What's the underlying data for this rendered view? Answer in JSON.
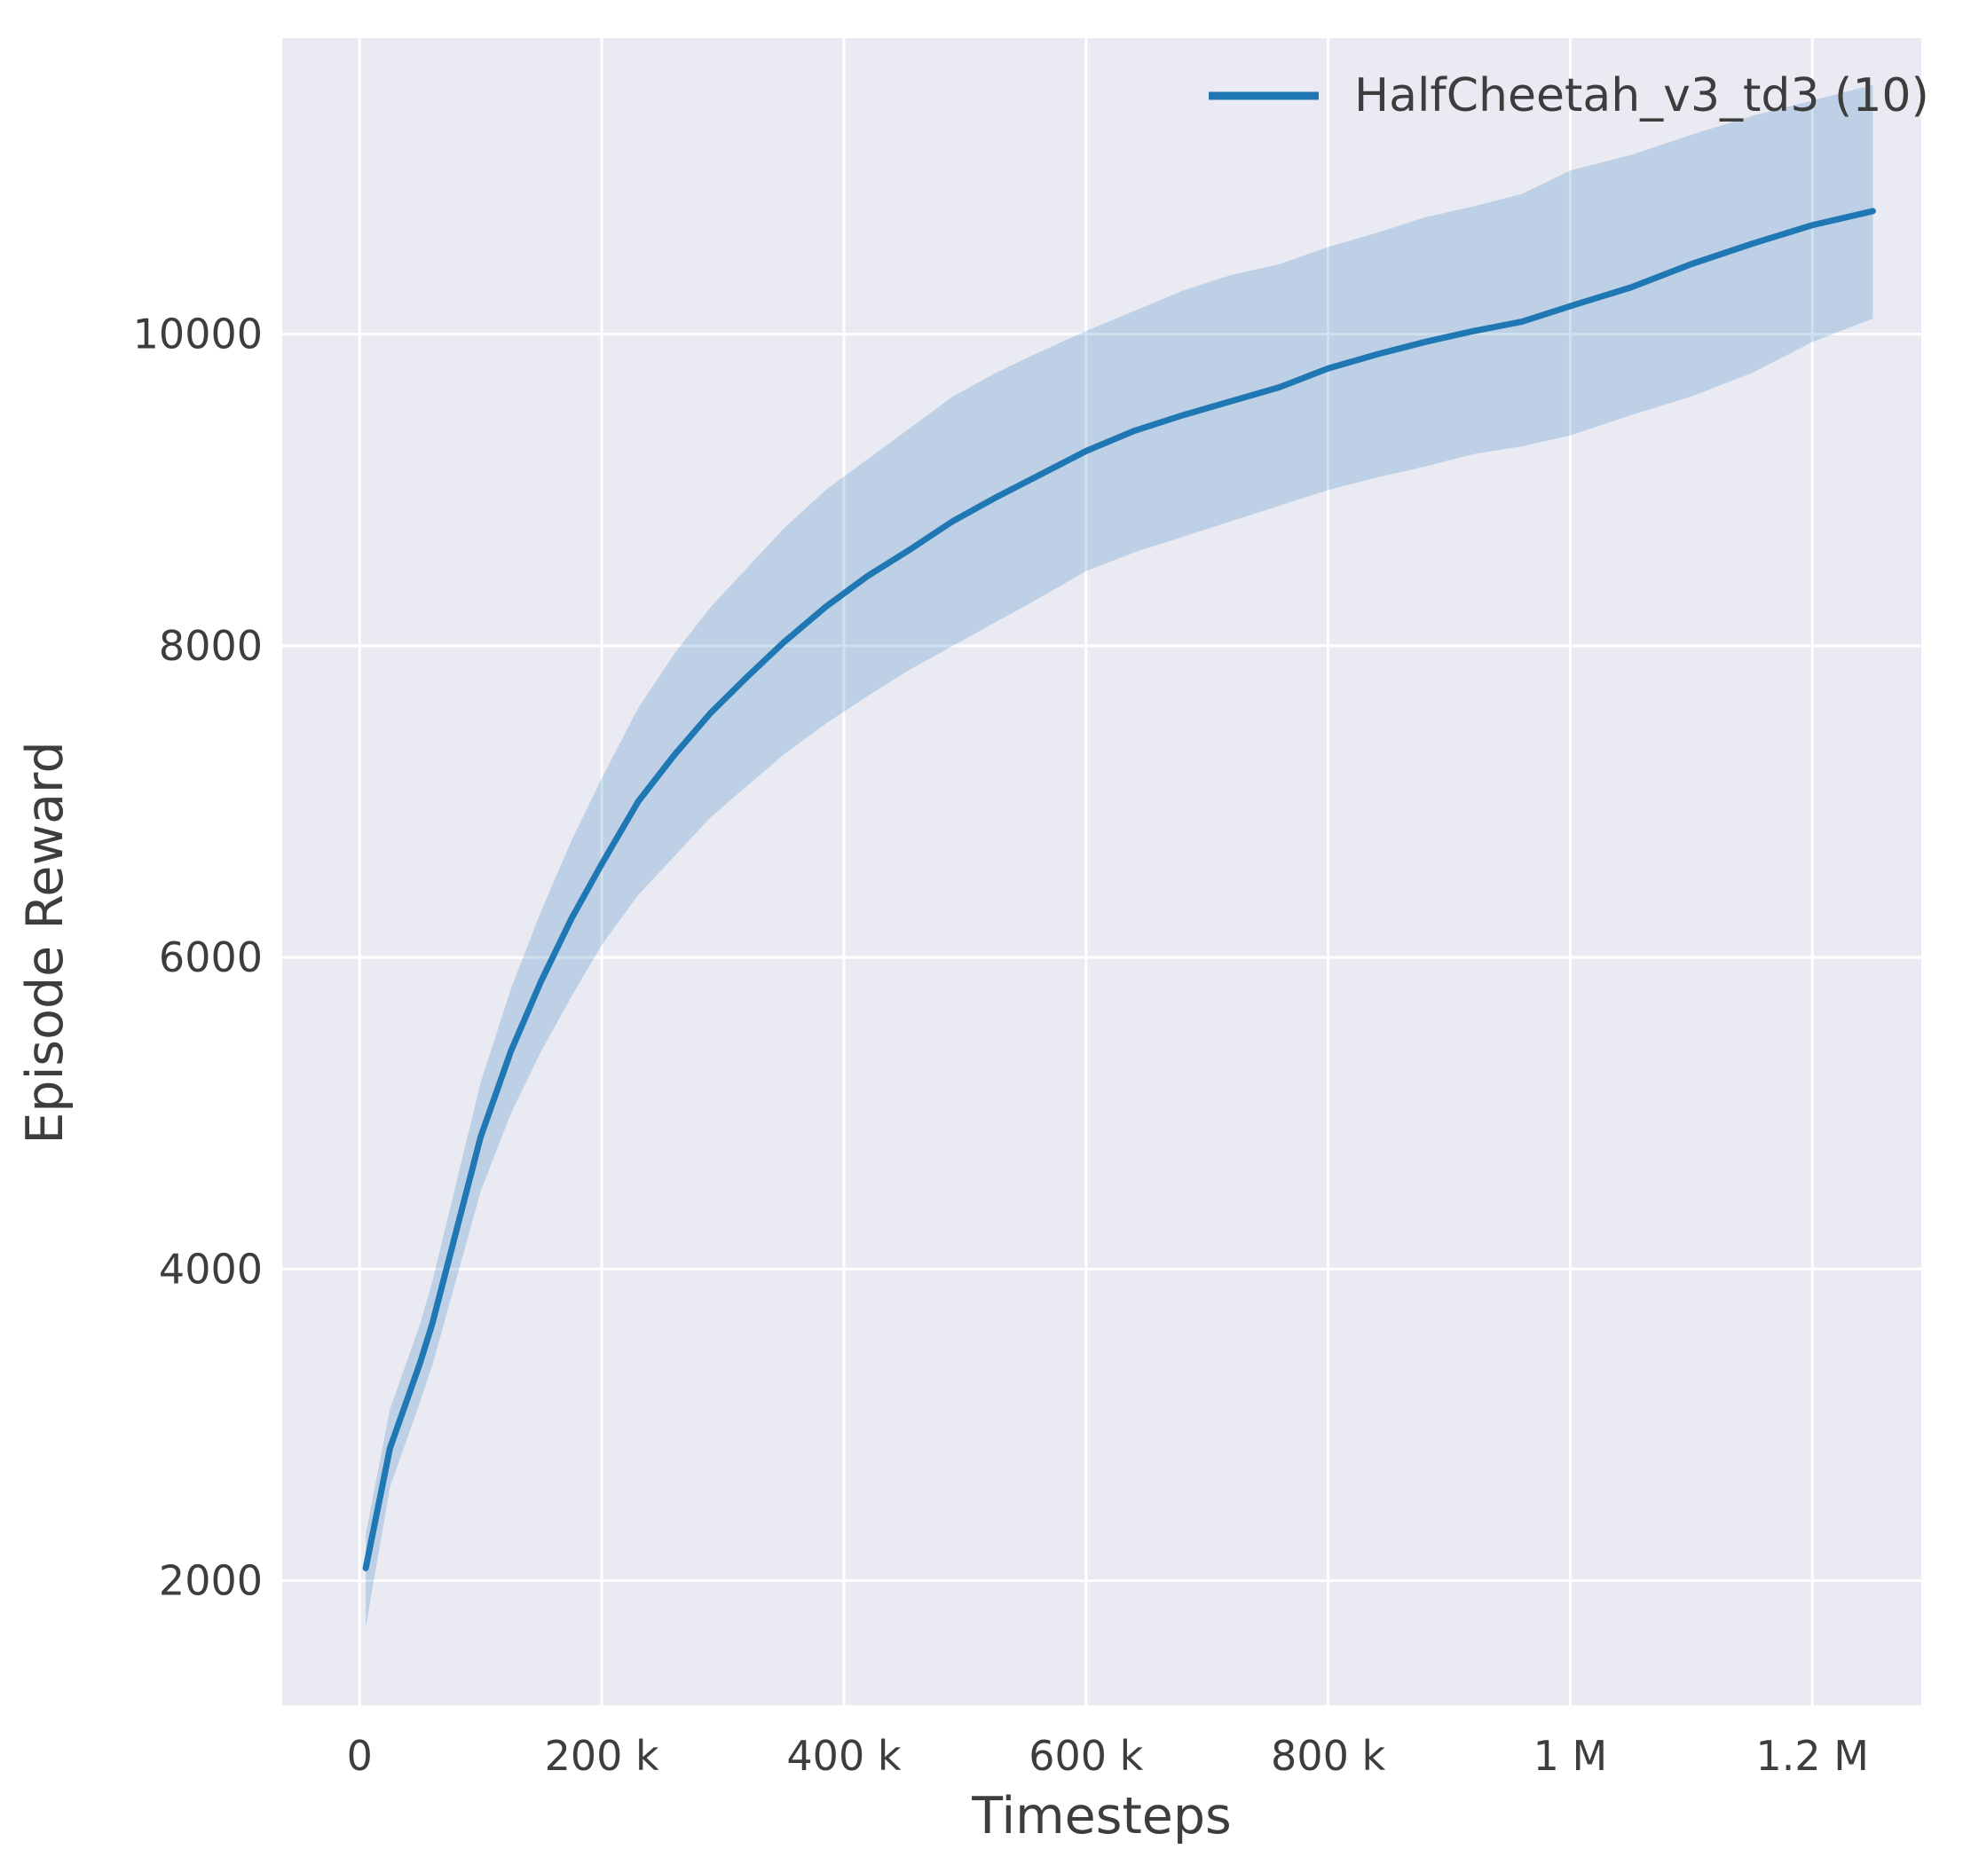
{
  "chart_data": {
    "type": "line",
    "title": "",
    "xlabel": "Timesteps",
    "ylabel": "Episode Reward",
    "xlim": [
      -64000,
      1290000
    ],
    "ylim": [
      1200,
      11900
    ],
    "grid": true,
    "legend_position": "upper right",
    "x_ticks": {
      "values": [
        0,
        200000,
        400000,
        600000,
        800000,
        1000000,
        1200000
      ],
      "labels": [
        "0",
        "200 k",
        "400 k",
        "600 k",
        "800 k",
        "1 M",
        "1.2 M"
      ]
    },
    "y_ticks": {
      "values": [
        2000,
        4000,
        6000,
        8000,
        10000
      ],
      "labels": [
        "2000",
        "4000",
        "6000",
        "8000",
        "10000"
      ]
    },
    "colors": {
      "figure_background": "#ffffff",
      "axes_background": "#eaeaf2",
      "grid": "#ffffff",
      "text": "#3d3d3d",
      "line": "#1f77b4",
      "band": "#1f77b4"
    },
    "series": [
      {
        "name": "HalfCheetah_v3_td3 (10)",
        "color": "#1f77b4",
        "band_opacity": 0.22,
        "x": [
          5000,
          25000,
          50000,
          60000,
          75000,
          100000,
          125000,
          150000,
          175000,
          200000,
          230000,
          260000,
          290000,
          320000,
          350000,
          385000,
          420000,
          455000,
          490000,
          525000,
          560000,
          600000,
          640000,
          680000,
          720000,
          760000,
          800000,
          840000,
          880000,
          920000,
          960000,
          1000000,
          1050000,
          1100000,
          1150000,
          1200000,
          1250000
        ],
        "mean": [
          2080,
          2850,
          3400,
          3650,
          4100,
          4850,
          5400,
          5850,
          6250,
          6600,
          7000,
          7300,
          7570,
          7800,
          8020,
          8250,
          8450,
          8620,
          8800,
          8950,
          9090,
          9250,
          9380,
          9480,
          9570,
          9660,
          9780,
          9870,
          9950,
          10020,
          10080,
          10180,
          10300,
          10450,
          10580,
          10700,
          10790
        ],
        "lower": [
          1700,
          2600,
          3150,
          3380,
          3800,
          4500,
          5000,
          5400,
          5750,
          6080,
          6400,
          6650,
          6900,
          7100,
          7300,
          7500,
          7680,
          7850,
          8000,
          8150,
          8300,
          8480,
          8600,
          8700,
          8800,
          8900,
          9000,
          9080,
          9150,
          9230,
          9280,
          9350,
          9480,
          9600,
          9750,
          9950,
          10100
        ],
        "upper": [
          2300,
          3100,
          3650,
          3920,
          4400,
          5200,
          5800,
          6300,
          6750,
          7150,
          7600,
          7950,
          8250,
          8500,
          8750,
          9000,
          9200,
          9400,
          9600,
          9750,
          9880,
          10020,
          10150,
          10280,
          10380,
          10450,
          10560,
          10650,
          10750,
          10820,
          10900,
          11050,
          11150,
          11280,
          11400,
          11500,
          11600
        ]
      }
    ]
  }
}
